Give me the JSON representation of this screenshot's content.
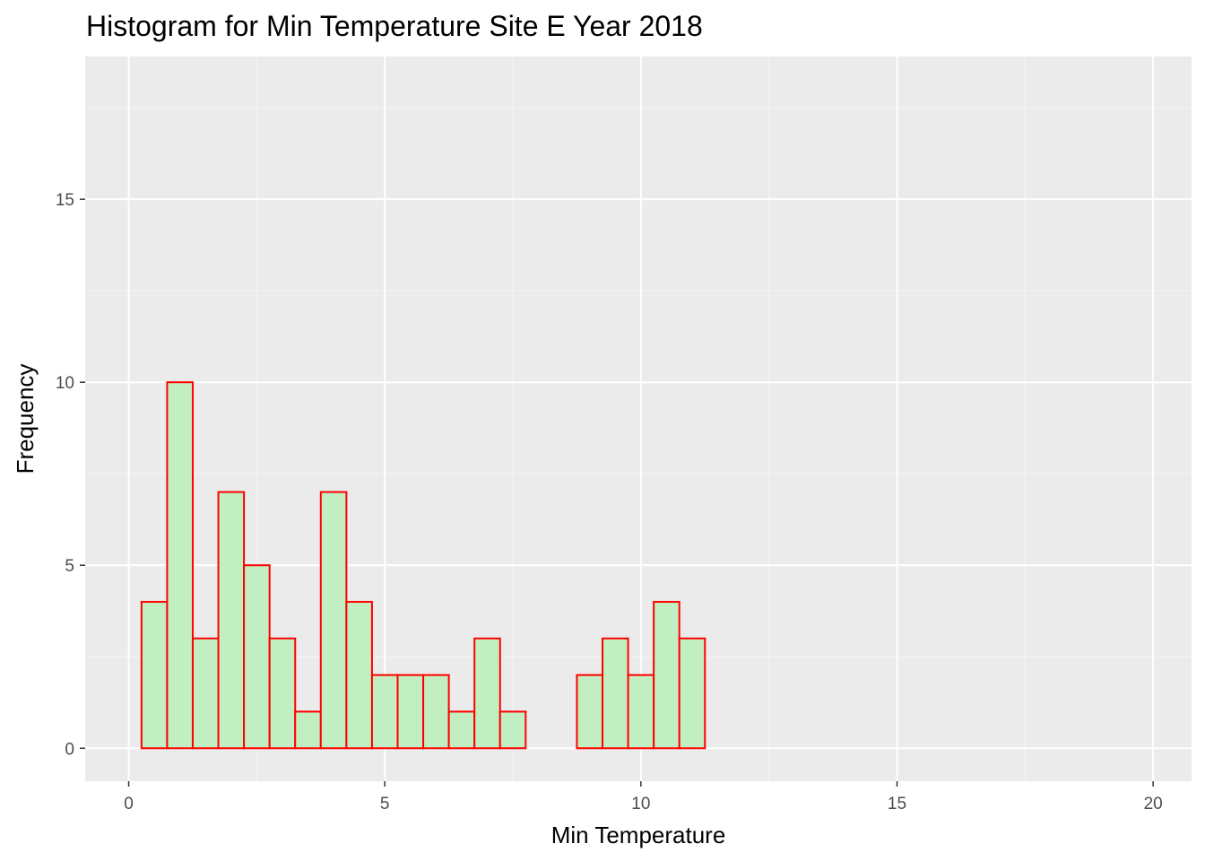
{
  "chart_data": {
    "type": "bar",
    "subtype": "histogram",
    "title": "Histogram for Min Temperature Site E Year 2018",
    "xlabel": "Min Temperature",
    "ylabel": "Frequency",
    "xlim": [
      -0.85,
      20.75
    ],
    "ylim": [
      -0.9,
      18.9
    ],
    "x_ticks": [
      0,
      5,
      10,
      15,
      20
    ],
    "x_tick_labels": [
      "0",
      "5",
      "10",
      "15",
      "20"
    ],
    "y_ticks": [
      0,
      5,
      10,
      15
    ],
    "y_tick_labels": [
      "0",
      "5",
      "10",
      "15"
    ],
    "bin_width": 0.5,
    "bins": [
      {
        "x0": 0.25,
        "x1": 0.75,
        "count": 4
      },
      {
        "x0": 0.75,
        "x1": 1.25,
        "count": 10
      },
      {
        "x0": 1.25,
        "x1": 1.75,
        "count": 3
      },
      {
        "x0": 1.75,
        "x1": 2.25,
        "count": 7
      },
      {
        "x0": 2.25,
        "x1": 2.75,
        "count": 5
      },
      {
        "x0": 2.75,
        "x1": 3.25,
        "count": 3
      },
      {
        "x0": 3.25,
        "x1": 3.75,
        "count": 1
      },
      {
        "x0": 3.75,
        "x1": 4.25,
        "count": 7
      },
      {
        "x0": 4.25,
        "x1": 4.75,
        "count": 4
      },
      {
        "x0": 4.75,
        "x1": 5.25,
        "count": 2
      },
      {
        "x0": 5.25,
        "x1": 5.75,
        "count": 2
      },
      {
        "x0": 5.75,
        "x1": 6.25,
        "count": 2
      },
      {
        "x0": 6.25,
        "x1": 6.75,
        "count": 1
      },
      {
        "x0": 6.75,
        "x1": 7.25,
        "count": 3
      },
      {
        "x0": 7.25,
        "x1": 7.75,
        "count": 1
      },
      {
        "x0": 7.75,
        "x1": 8.25,
        "count": 0
      },
      {
        "x0": 8.25,
        "x1": 8.75,
        "count": 0
      },
      {
        "x0": 8.75,
        "x1": 9.25,
        "count": 2
      },
      {
        "x0": 9.25,
        "x1": 9.75,
        "count": 3
      },
      {
        "x0": 9.75,
        "x1": 10.25,
        "count": 2
      },
      {
        "x0": 10.25,
        "x1": 10.75,
        "count": 4
      },
      {
        "x0": 10.75,
        "x1": 11.25,
        "count": 3
      },
      {
        "x0": 11.25,
        "x1": 19.75,
        "count": 0
      }
    ],
    "grid": true,
    "legend": "none",
    "colors": {
      "bar_fill": "#c1efc1",
      "bar_outline": "#ff0000",
      "panel_background": "#ebebeb",
      "grid_major": "#ffffff",
      "grid_minor": "#f5f5f5",
      "tick_label": "#4d4d4d",
      "text": "#000000"
    }
  }
}
